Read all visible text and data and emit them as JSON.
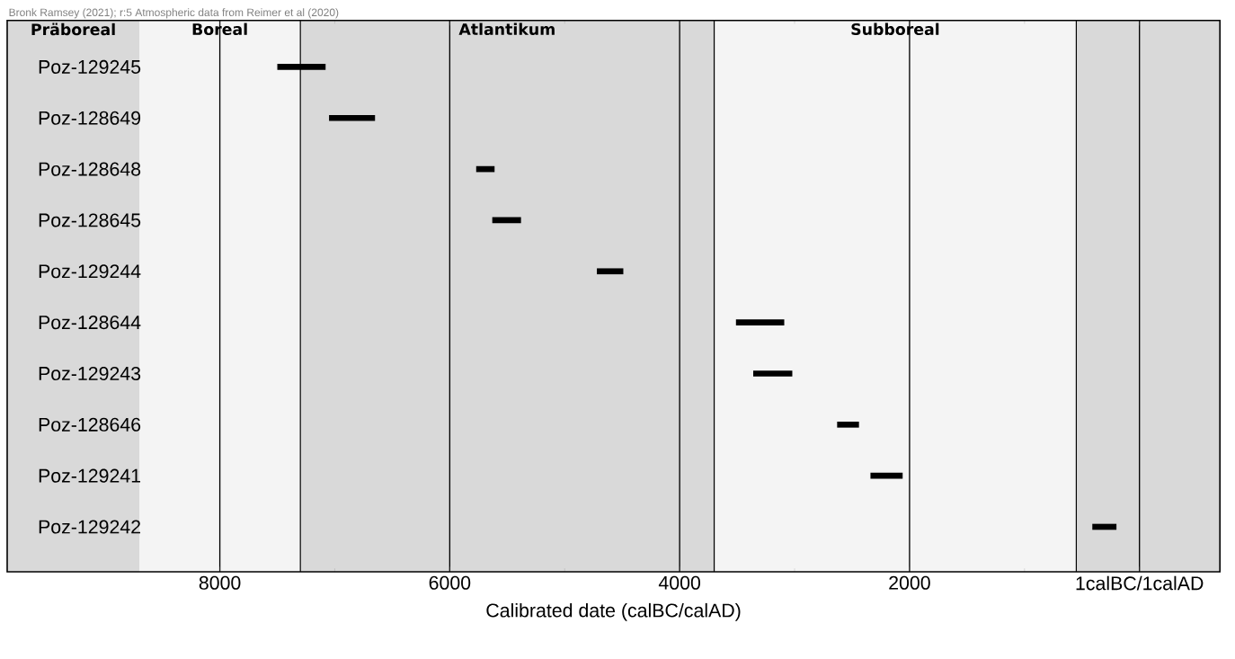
{
  "chart_data": {
    "type": "bar",
    "orientation": "horizontal",
    "annotations": [
      "Bronk Ramsey (2021); r:5 Atmospheric data from Reimer et al (2020)"
    ],
    "xlabel": "Calibrated date (calBC/calAD)",
    "categories": [
      "Poz-129245",
      "Poz-128649",
      "Poz-128648",
      "Poz-128645",
      "Poz-129244",
      "Poz-128644",
      "Poz-129243",
      "Poz-128646",
      "Poz-129241",
      "Poz-129242"
    ],
    "base": [
      7080,
      6650,
      5610,
      5380,
      4490,
      3090,
      3020,
      2440,
      2060,
      200
    ],
    "values": [
      420,
      400,
      160,
      250,
      230,
      420,
      340,
      190,
      280,
      210
    ],
    "color": "#000000",
    "xlim": [
      9850,
      -700
    ],
    "xticks": [
      8000,
      6000,
      4000,
      2000,
      {
        "value": 0,
        "label": "1calBC/1calAD"
      }
    ],
    "grid": "x",
    "bands": [
      {
        "axis": "x",
        "from": 9850,
        "to": 8700,
        "label": "Präboreal",
        "color": "#d9d9d9"
      },
      {
        "axis": "x",
        "from": 8700,
        "to": 7300,
        "label": "Boreal",
        "color": "#f4f4f4"
      },
      {
        "axis": "x",
        "from": 7300,
        "to": 3700,
        "label": "Atlantikum",
        "color": "#d9d9d9"
      },
      {
        "axis": "x",
        "from": 3700,
        "to": 550,
        "label": "Subboreal",
        "color": "#f4f4f4"
      },
      {
        "axis": "x",
        "from": 550,
        "to": -700,
        "color": "#d9d9d9"
      }
    ],
    "ref_lines": [
      {
        "axis": "x",
        "value": 7300,
        "color": "#000000"
      },
      {
        "axis": "x",
        "value": 3700,
        "color": "#000000"
      },
      {
        "axis": "x",
        "value": 550,
        "color": "#000000"
      }
    ]
  }
}
